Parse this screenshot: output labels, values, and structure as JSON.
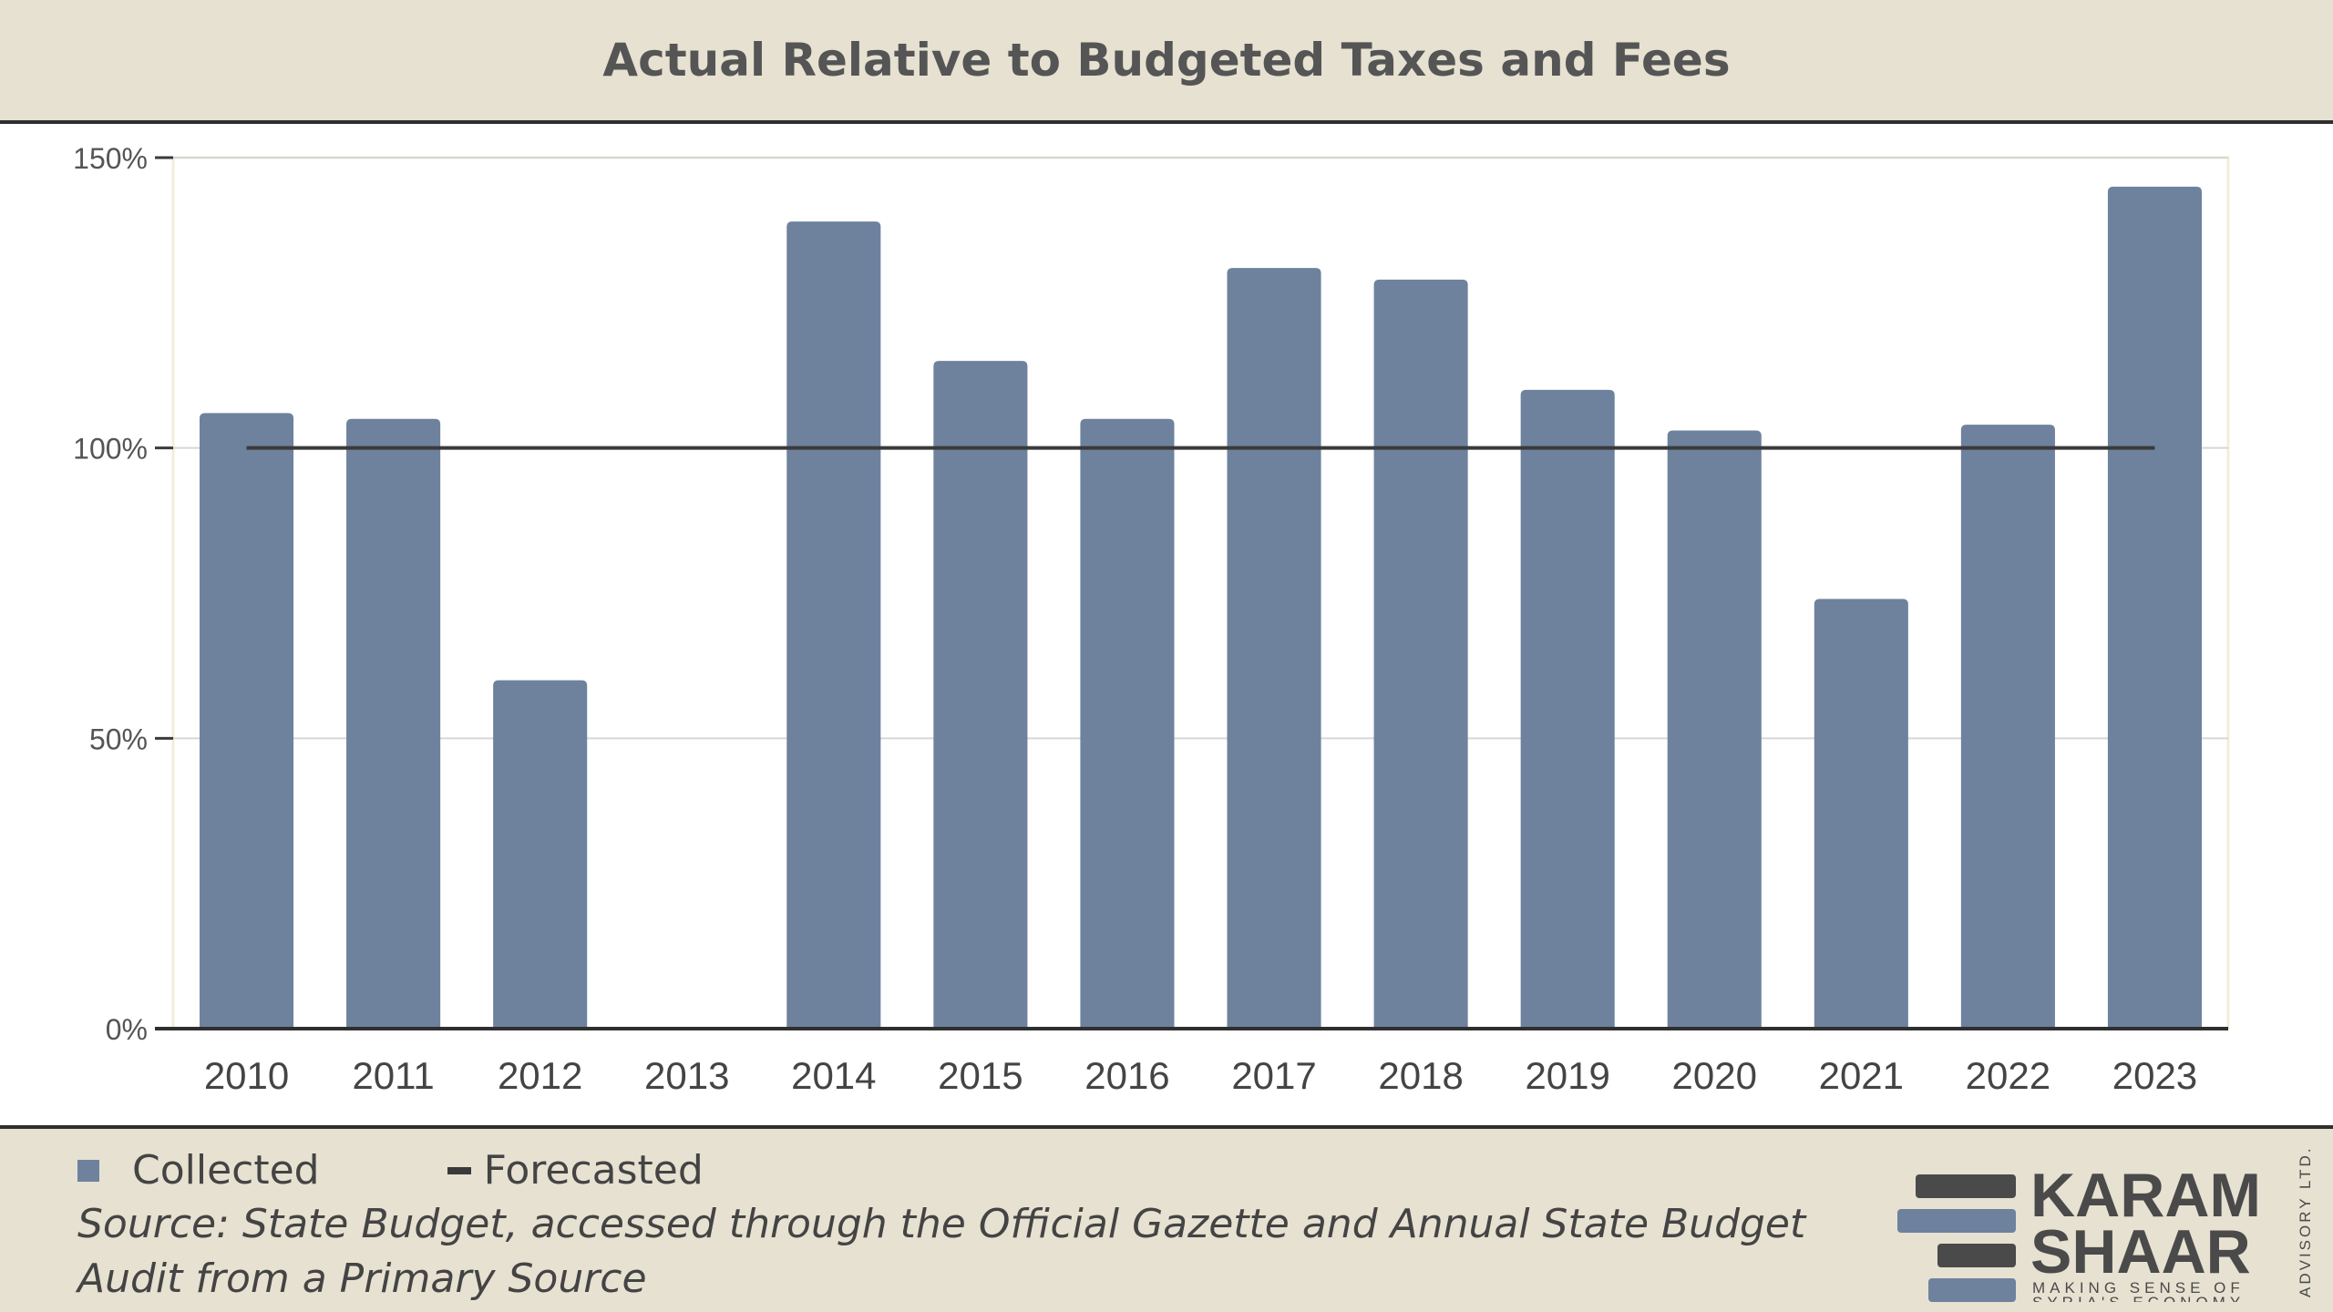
{
  "header": {
    "title": "Actual Relative to Budgeted Taxes and Fees"
  },
  "legend": {
    "collected": "Collected",
    "forecasted": "Forecasted"
  },
  "footer": {
    "source": "Source: State Budget, accessed through the Official Gazette and Annual State Budget Audit from a Primary Source"
  },
  "logo": {
    "line1": "KARAM",
    "line2": "SHAAR",
    "tagline1": "MAKING SENSE OF",
    "tagline2": "SYRIA'S ECONOMY",
    "vertical": "ADVISORY LTD."
  },
  "colors": {
    "bar": "#6e829e",
    "forecast_line": "#3a3a3a",
    "background": "#e7e1d1"
  },
  "chart_data": {
    "type": "bar",
    "title": "Actual Relative to Budgeted Taxes and Fees",
    "categories": [
      "2010",
      "2011",
      "2012",
      "2013",
      "2014",
      "2015",
      "2016",
      "2017",
      "2018",
      "2019",
      "2020",
      "2021",
      "2022",
      "2023"
    ],
    "series": [
      {
        "name": "Collected",
        "values": [
          106,
          105,
          60,
          0,
          139,
          115,
          105,
          131,
          129,
          110,
          103,
          74,
          104,
          145
        ]
      },
      {
        "name": "Forecasted",
        "values": [
          100,
          100,
          100,
          100,
          100,
          100,
          100,
          100,
          100,
          100,
          100,
          100,
          100,
          100
        ]
      }
    ],
    "yticks": [
      "0%",
      "50%",
      "100%",
      "150%"
    ],
    "ylim": [
      0,
      150
    ],
    "grid": true,
    "legend_position": "bottom-left"
  }
}
